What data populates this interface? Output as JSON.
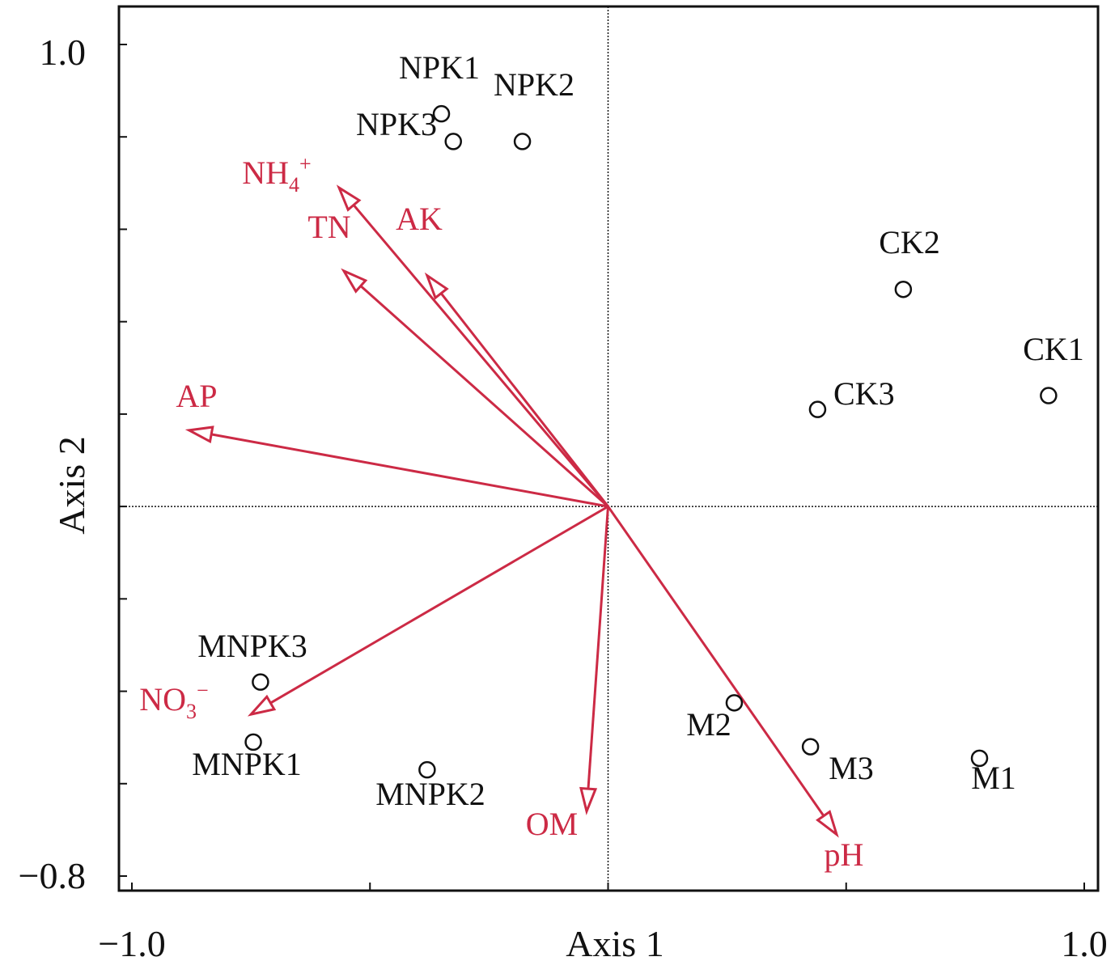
{
  "chart_data": {
    "type": "scatter",
    "xlabel": "Axis 1",
    "ylabel": "Axis 2",
    "xlim": [
      -1.0,
      1.0
    ],
    "ylim": [
      -0.8,
      1.0
    ],
    "x_tick_labels": [
      "−1.0",
      "1.0"
    ],
    "y_tick_labels": [
      "1.0",
      "−0.8"
    ],
    "grid": false,
    "reference_lines": {
      "x": 0,
      "y": 0
    },
    "colors": {
      "points": "#111111",
      "vectors": "#cc2a45",
      "axes": "#111111"
    },
    "samples": [
      {
        "name": "NPK1",
        "x": -0.35,
        "y": 0.85
      },
      {
        "name": "NPK2",
        "x": -0.18,
        "y": 0.79
      },
      {
        "name": "NPK3",
        "x": -0.325,
        "y": 0.79
      },
      {
        "name": "CK2",
        "x": 0.62,
        "y": 0.47
      },
      {
        "name": "CK1",
        "x": 0.925,
        "y": 0.24
      },
      {
        "name": "CK3",
        "x": 0.44,
        "y": 0.21
      },
      {
        "name": "MNPK3",
        "x": -0.73,
        "y": -0.38
      },
      {
        "name": "MNPK1",
        "x": -0.745,
        "y": -0.51
      },
      {
        "name": "MNPK2",
        "x": -0.38,
        "y": -0.57
      },
      {
        "name": "M2",
        "x": 0.265,
        "y": -0.425
      },
      {
        "name": "M3",
        "x": 0.425,
        "y": -0.52
      },
      {
        "name": "M1",
        "x": 0.78,
        "y": -0.545
      }
    ],
    "vectors": [
      {
        "name": "NH",
        "sub": "4",
        "sup": "+",
        "x": -0.565,
        "y": 0.69
      },
      {
        "name": "TN",
        "x": -0.555,
        "y": 0.51
      },
      {
        "name": "AK",
        "x": -0.38,
        "y": 0.5
      },
      {
        "name": "AP",
        "x": -0.88,
        "y": 0.165
      },
      {
        "name": "NO",
        "sub": "3",
        "sup": "−",
        "x": -0.75,
        "y": -0.45
      },
      {
        "name": "OM",
        "x": -0.045,
        "y": -0.66
      },
      {
        "name": "pH",
        "x": 0.48,
        "y": -0.71
      }
    ]
  }
}
